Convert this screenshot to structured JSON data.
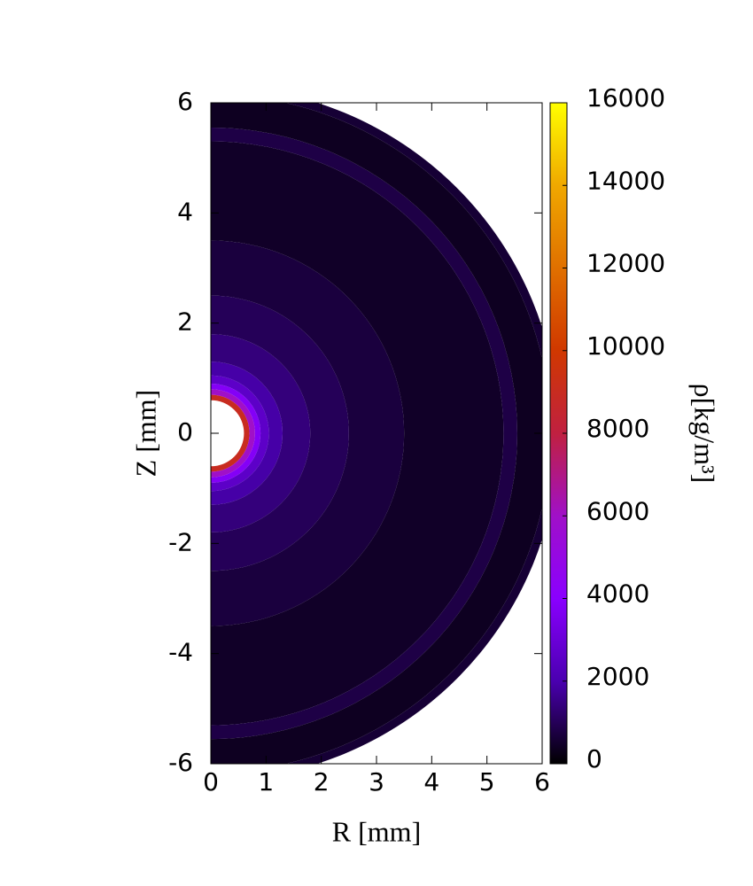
{
  "chart_data": {
    "type": "radial-density",
    "x_label": "R [mm]",
    "y_label": "Z [mm]",
    "colorbar_label": "ρ[kg/m³]",
    "xlim": [
      0,
      6
    ],
    "xticks": [
      0,
      1,
      2,
      3,
      4,
      5,
      6
    ],
    "ylim": [
      -6,
      6
    ],
    "yticks": [
      -6,
      -4,
      -2,
      0,
      2,
      4,
      6
    ],
    "zlim": [
      0,
      16000
    ],
    "zticks": [
      0,
      2000,
      4000,
      6000,
      8000,
      10000,
      12000,
      14000,
      16000
    ],
    "colormap": [
      "#000000",
      "#4a00b0",
      "#8a00ff",
      "#a010c8",
      "#c02040",
      "#d03800",
      "#e07000",
      "#f0a800",
      "#ffff00"
    ],
    "r_edges": [
      0.6,
      0.7,
      0.8,
      0.9,
      1.05,
      1.3,
      1.8,
      2.5,
      3.5,
      5.3,
      5.55,
      6.15,
      6.3
    ],
    "density": [
      9000,
      6000,
      3800,
      2600,
      1900,
      1400,
      1000,
      700,
      450,
      800,
      380,
      600
    ]
  }
}
